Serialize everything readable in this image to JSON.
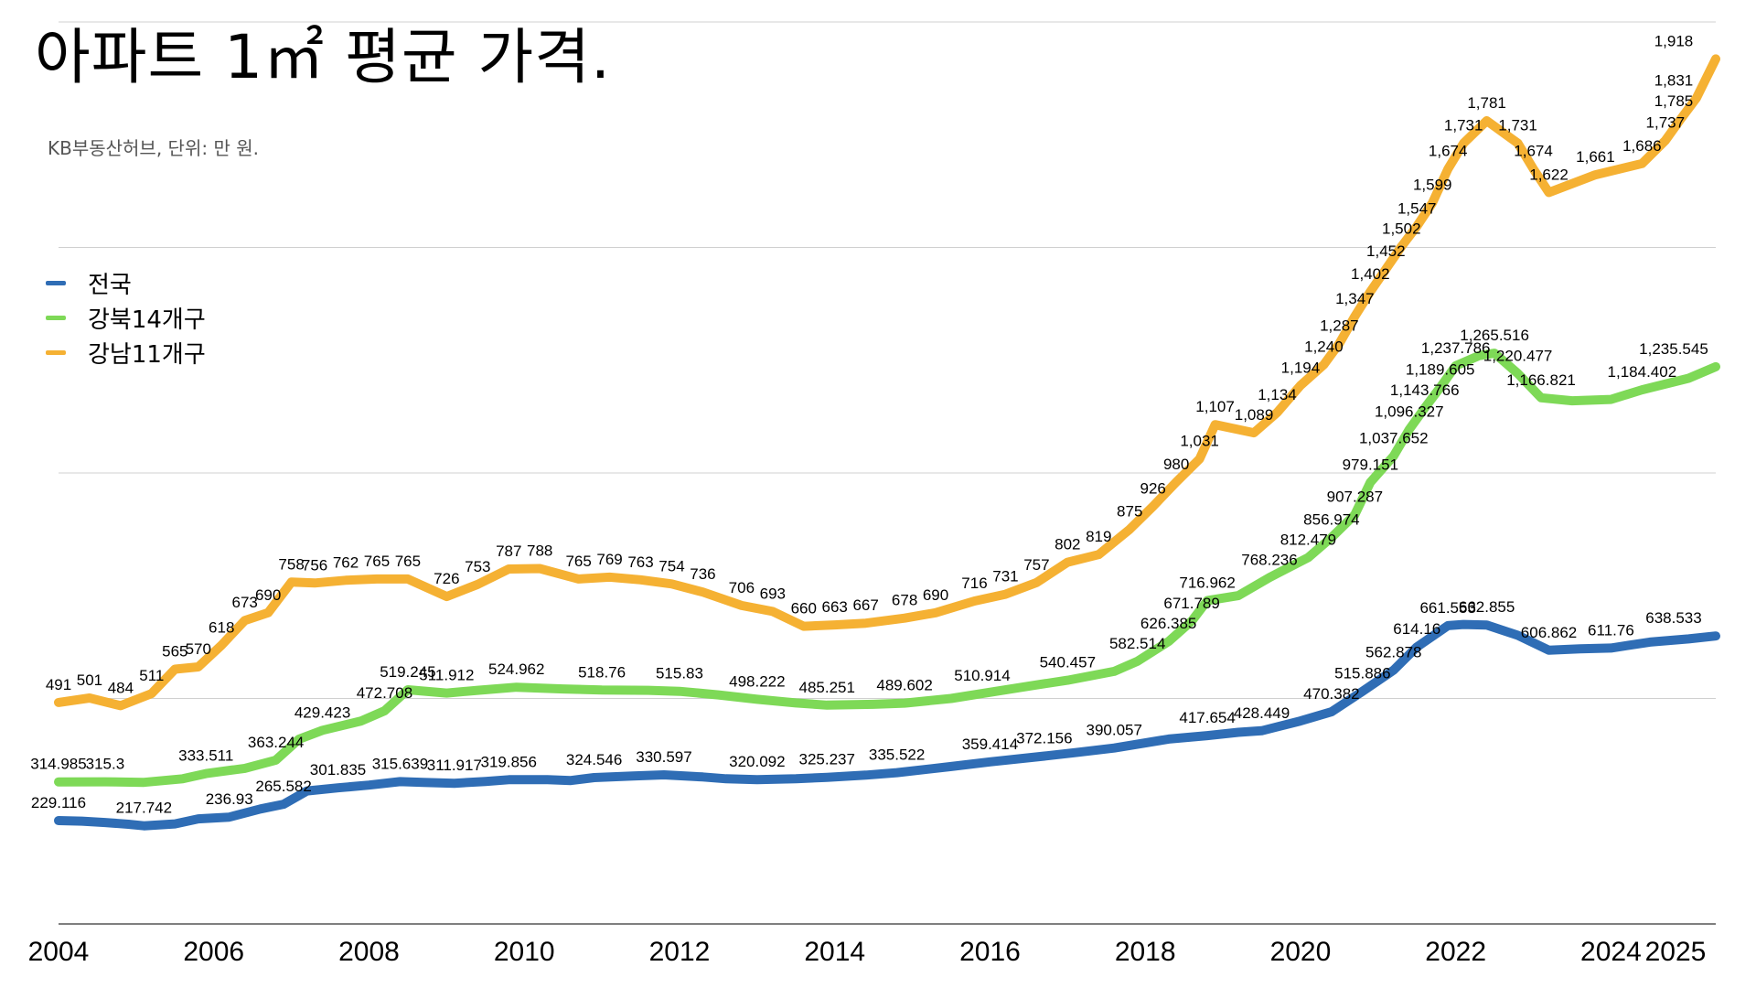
{
  "title": "아파트 1㎡ 평균 가격.",
  "subtitle": "KB부동산허브, 단위: 만 원.",
  "chart_data": {
    "type": "line",
    "title": "아파트 1㎡ 평균 가격.",
    "subtitle": "KB부동산허브, 단위: 만 원.",
    "x_ticks": [
      "2004",
      "2006",
      "2008",
      "2010",
      "2012",
      "2014",
      "2016",
      "2018",
      "2020",
      "2022",
      "2024",
      "2025"
    ],
    "xlim": [
      2004,
      2025.35
    ],
    "ylim": [
      0,
      2000
    ],
    "y_gridlines": [
      500,
      1000,
      1500,
      2000
    ],
    "grid": true,
    "legend_position": "left",
    "series": [
      {
        "name": "전국",
        "color": "#2f6db5",
        "points": [
          {
            "x": 2004.0,
            "y": 229.116,
            "label": "229.116"
          },
          {
            "x": 2004.3,
            "y": 228
          },
          {
            "x": 2004.6,
            "y": 225
          },
          {
            "x": 2004.9,
            "y": 221
          },
          {
            "x": 2005.1,
            "y": 217.742,
            "label": "217.742"
          },
          {
            "x": 2005.5,
            "y": 222
          },
          {
            "x": 2005.8,
            "y": 233
          },
          {
            "x": 2006.2,
            "y": 236.93,
            "label": "236.93"
          },
          {
            "x": 2006.6,
            "y": 255
          },
          {
            "x": 2006.9,
            "y": 265.582,
            "label": "265.582"
          },
          {
            "x": 2007.2,
            "y": 295
          },
          {
            "x": 2007.6,
            "y": 301.835,
            "label": "301.835"
          },
          {
            "x": 2008.0,
            "y": 308
          },
          {
            "x": 2008.4,
            "y": 315.639,
            "label": "315.639"
          },
          {
            "x": 2008.7,
            "y": 314
          },
          {
            "x": 2009.1,
            "y": 311.917,
            "label": "311.917"
          },
          {
            "x": 2009.5,
            "y": 316
          },
          {
            "x": 2009.8,
            "y": 319.856,
            "label": "319.856"
          },
          {
            "x": 2010.3,
            "y": 320
          },
          {
            "x": 2010.6,
            "y": 318
          },
          {
            "x": 2010.9,
            "y": 324.546,
            "label": "324.546"
          },
          {
            "x": 2011.4,
            "y": 328
          },
          {
            "x": 2011.8,
            "y": 330.597,
            "label": "330.597"
          },
          {
            "x": 2012.3,
            "y": 326
          },
          {
            "x": 2012.6,
            "y": 322
          },
          {
            "x": 2013.0,
            "y": 320.092,
            "label": "320.092"
          },
          {
            "x": 2013.5,
            "y": 322
          },
          {
            "x": 2013.9,
            "y": 325.237,
            "label": "325.237"
          },
          {
            "x": 2014.4,
            "y": 330
          },
          {
            "x": 2014.8,
            "y": 335.522,
            "label": "335.522"
          },
          {
            "x": 2015.5,
            "y": 349
          },
          {
            "x": 2016.0,
            "y": 359.414,
            "label": "359.414"
          },
          {
            "x": 2016.7,
            "y": 372.156,
            "label": "372.156"
          },
          {
            "x": 2017.1,
            "y": 380
          },
          {
            "x": 2017.6,
            "y": 390.057,
            "label": "390.057"
          },
          {
            "x": 2018.3,
            "y": 410
          },
          {
            "x": 2018.8,
            "y": 417.654,
            "label": "417.654"
          },
          {
            "x": 2019.2,
            "y": 425
          },
          {
            "x": 2019.5,
            "y": 428.449,
            "label": "428.449"
          },
          {
            "x": 2020.0,
            "y": 450
          },
          {
            "x": 2020.4,
            "y": 470.382,
            "label": "470.382"
          },
          {
            "x": 2020.8,
            "y": 515.886,
            "label": "515.886"
          },
          {
            "x": 2021.2,
            "y": 562.878,
            "label": "562.878"
          },
          {
            "x": 2021.5,
            "y": 614.16,
            "label": "614.16"
          },
          {
            "x": 2021.9,
            "y": 661.553,
            "label": "661.553"
          },
          {
            "x": 2022.1,
            "y": 664
          },
          {
            "x": 2022.4,
            "y": 662.855,
            "label": "662.855"
          },
          {
            "x": 2022.8,
            "y": 640
          },
          {
            "x": 2023.2,
            "y": 606.862,
            "label": "606.862"
          },
          {
            "x": 2023.6,
            "y": 610
          },
          {
            "x": 2024.0,
            "y": 611.76,
            "label": "611.76"
          },
          {
            "x": 2024.5,
            "y": 625
          },
          {
            "x": 2025.0,
            "y": 632
          },
          {
            "x": 2025.35,
            "y": 638.533,
            "label": "638.533"
          }
        ]
      },
      {
        "name": "강북14개구",
        "color": "#7ed957",
        "points": [
          {
            "x": 2004.0,
            "y": 314.985,
            "label": "314.985"
          },
          {
            "x": 2004.6,
            "y": 315.3,
            "label": "315.3"
          },
          {
            "x": 2005.1,
            "y": 314
          },
          {
            "x": 2005.6,
            "y": 322
          },
          {
            "x": 2005.9,
            "y": 333.511,
            "label": "333.511"
          },
          {
            "x": 2006.4,
            "y": 345
          },
          {
            "x": 2006.8,
            "y": 363.244,
            "label": "363.244"
          },
          {
            "x": 2007.1,
            "y": 410
          },
          {
            "x": 2007.4,
            "y": 429.423,
            "label": "429.423"
          },
          {
            "x": 2007.9,
            "y": 450
          },
          {
            "x": 2008.2,
            "y": 472.708,
            "label": "472.708"
          },
          {
            "x": 2008.5,
            "y": 519.245,
            "label": "519.245"
          },
          {
            "x": 2009.0,
            "y": 511.912,
            "label": "511.912"
          },
          {
            "x": 2009.4,
            "y": 518
          },
          {
            "x": 2009.9,
            "y": 524.962,
            "label": "524.962"
          },
          {
            "x": 2010.5,
            "y": 521
          },
          {
            "x": 2011.0,
            "y": 518.76,
            "label": "518.76"
          },
          {
            "x": 2011.6,
            "y": 518
          },
          {
            "x": 2012.0,
            "y": 515.83,
            "label": "515.83"
          },
          {
            "x": 2012.5,
            "y": 508
          },
          {
            "x": 2013.0,
            "y": 498.222,
            "label": "498.222"
          },
          {
            "x": 2013.5,
            "y": 490
          },
          {
            "x": 2013.9,
            "y": 485.251,
            "label": "485.251"
          },
          {
            "x": 2014.5,
            "y": 487
          },
          {
            "x": 2014.9,
            "y": 489.602,
            "label": "489.602"
          },
          {
            "x": 2015.5,
            "y": 500
          },
          {
            "x": 2015.9,
            "y": 510.914,
            "label": "510.914"
          },
          {
            "x": 2016.6,
            "y": 530
          },
          {
            "x": 2017.0,
            "y": 540.457,
            "label": "540.457"
          },
          {
            "x": 2017.6,
            "y": 560
          },
          {
            "x": 2017.9,
            "y": 582.514,
            "label": "582.514"
          },
          {
            "x": 2018.3,
            "y": 626.385,
            "label": "626.385"
          },
          {
            "x": 2018.6,
            "y": 671.789,
            "label": "671.789"
          },
          {
            "x": 2018.8,
            "y": 716.962,
            "label": "716.962"
          },
          {
            "x": 2019.2,
            "y": 728
          },
          {
            "x": 2019.6,
            "y": 768.236,
            "label": "768.236"
          },
          {
            "x": 2020.1,
            "y": 812.479,
            "label": "812.479"
          },
          {
            "x": 2020.4,
            "y": 856.974,
            "label": "856.974"
          },
          {
            "x": 2020.7,
            "y": 907.287,
            "label": "907.287"
          },
          {
            "x": 2020.9,
            "y": 979.151,
            "label": "979.151"
          },
          {
            "x": 2021.2,
            "y": 1037.652,
            "label": "1,037.652"
          },
          {
            "x": 2021.4,
            "y": 1096.327,
            "label": "1,096.327"
          },
          {
            "x": 2021.6,
            "y": 1143.766,
            "label": "1,143.766"
          },
          {
            "x": 2021.8,
            "y": 1189.605,
            "label": "1,189.605"
          },
          {
            "x": 2022.0,
            "y": 1237.786,
            "label": "1,237.786"
          },
          {
            "x": 2022.3,
            "y": 1260
          },
          {
            "x": 2022.5,
            "y": 1265.516,
            "label": "1,265.516"
          },
          {
            "x": 2022.8,
            "y": 1220.477,
            "label": "1,220.477"
          },
          {
            "x": 2023.1,
            "y": 1166.821,
            "label": "1,166.821"
          },
          {
            "x": 2023.5,
            "y": 1160
          },
          {
            "x": 2024.0,
            "y": 1163
          },
          {
            "x": 2024.4,
            "y": 1184.402,
            "label": "1,184.402"
          },
          {
            "x": 2025.0,
            "y": 1210
          },
          {
            "x": 2025.35,
            "y": 1235.545,
            "label": "1,235.545"
          }
        ]
      },
      {
        "name": "강남11개구",
        "color": "#f5b133",
        "points": [
          {
            "x": 2004.0,
            "y": 491,
            "label": "491"
          },
          {
            "x": 2004.4,
            "y": 501,
            "label": "501"
          },
          {
            "x": 2004.8,
            "y": 484,
            "label": "484"
          },
          {
            "x": 2005.2,
            "y": 511,
            "label": "511"
          },
          {
            "x": 2005.5,
            "y": 565,
            "label": "565"
          },
          {
            "x": 2005.8,
            "y": 570,
            "label": "570"
          },
          {
            "x": 2006.1,
            "y": 618,
            "label": "618"
          },
          {
            "x": 2006.4,
            "y": 673,
            "label": "673"
          },
          {
            "x": 2006.7,
            "y": 690,
            "label": "690"
          },
          {
            "x": 2007.0,
            "y": 758,
            "label": "758"
          },
          {
            "x": 2007.3,
            "y": 756,
            "label": "756"
          },
          {
            "x": 2007.7,
            "y": 762,
            "label": "762"
          },
          {
            "x": 2008.1,
            "y": 765,
            "label": "765"
          },
          {
            "x": 2008.5,
            "y": 765,
            "label": "765"
          },
          {
            "x": 2009.0,
            "y": 726,
            "label": "726"
          },
          {
            "x": 2009.4,
            "y": 753,
            "label": "753"
          },
          {
            "x": 2009.8,
            "y": 787,
            "label": "787"
          },
          {
            "x": 2010.2,
            "y": 788,
            "label": "788"
          },
          {
            "x": 2010.7,
            "y": 765,
            "label": "765"
          },
          {
            "x": 2011.1,
            "y": 769,
            "label": "769"
          },
          {
            "x": 2011.5,
            "y": 763,
            "label": "763"
          },
          {
            "x": 2011.9,
            "y": 754,
            "label": "754"
          },
          {
            "x": 2012.3,
            "y": 736,
            "label": "736"
          },
          {
            "x": 2012.8,
            "y": 706,
            "label": "706"
          },
          {
            "x": 2013.2,
            "y": 693,
            "label": "693"
          },
          {
            "x": 2013.6,
            "y": 660,
            "label": "660"
          },
          {
            "x": 2014.0,
            "y": 663,
            "label": "663"
          },
          {
            "x": 2014.4,
            "y": 667,
            "label": "667"
          },
          {
            "x": 2014.9,
            "y": 678,
            "label": "678"
          },
          {
            "x": 2015.3,
            "y": 690,
            "label": "690"
          },
          {
            "x": 2015.8,
            "y": 716,
            "label": "716"
          },
          {
            "x": 2016.2,
            "y": 731,
            "label": "731"
          },
          {
            "x": 2016.6,
            "y": 757,
            "label": "757"
          },
          {
            "x": 2017.0,
            "y": 802,
            "label": "802"
          },
          {
            "x": 2017.4,
            "y": 819,
            "label": "819"
          },
          {
            "x": 2017.8,
            "y": 875,
            "label": "875"
          },
          {
            "x": 2018.1,
            "y": 926,
            "label": "926"
          },
          {
            "x": 2018.4,
            "y": 980,
            "label": "980"
          },
          {
            "x": 2018.7,
            "y": 1031,
            "label": "1,031"
          },
          {
            "x": 2018.9,
            "y": 1107,
            "label": "1,107"
          },
          {
            "x": 2019.4,
            "y": 1089,
            "label": "1,089"
          },
          {
            "x": 2019.7,
            "y": 1134,
            "label": "1,134"
          },
          {
            "x": 2020.0,
            "y": 1194,
            "label": "1,194"
          },
          {
            "x": 2020.3,
            "y": 1240,
            "label": "1,240"
          },
          {
            "x": 2020.5,
            "y": 1287,
            "label": "1,287"
          },
          {
            "x": 2020.7,
            "y": 1347,
            "label": "1,347"
          },
          {
            "x": 2020.9,
            "y": 1402,
            "label": "1,402"
          },
          {
            "x": 2021.1,
            "y": 1452,
            "label": "1,452"
          },
          {
            "x": 2021.3,
            "y": 1502,
            "label": "1,502"
          },
          {
            "x": 2021.5,
            "y": 1547,
            "label": "1,547"
          },
          {
            "x": 2021.7,
            "y": 1599,
            "label": "1,599"
          },
          {
            "x": 2021.9,
            "y": 1674,
            "label": "1,674"
          },
          {
            "x": 2022.1,
            "y": 1731,
            "label": "1,731"
          },
          {
            "x": 2022.4,
            "y": 1781,
            "label": "1,781"
          },
          {
            "x": 2022.8,
            "y": 1731,
            "label": "1,731"
          },
          {
            "x": 2023.0,
            "y": 1674,
            "label": "1,674"
          },
          {
            "x": 2023.2,
            "y": 1622,
            "label": "1,622"
          },
          {
            "x": 2023.8,
            "y": 1661,
            "label": "1,661"
          },
          {
            "x": 2024.4,
            "y": 1686,
            "label": "1,686"
          },
          {
            "x": 2024.7,
            "y": 1737,
            "label": "1,737"
          },
          {
            "x": 2024.9,
            "y": 1785,
            "label": "1,785"
          },
          {
            "x": 2025.1,
            "y": 1831,
            "label": "1,831"
          },
          {
            "x": 2025.35,
            "y": 1918,
            "label": "1,918"
          }
        ]
      }
    ]
  }
}
